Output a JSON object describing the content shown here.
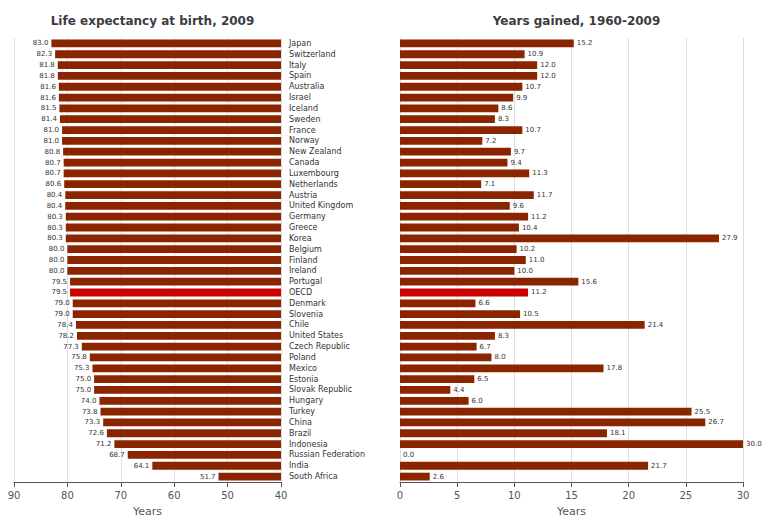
{
  "chart_data": [
    {
      "type": "bar",
      "orientation": "horizontal",
      "title": "Life expectancy at birth, 2009",
      "xlabel": "Years",
      "categories": [
        "Japan",
        "Switzerland",
        "Italy",
        "Spain",
        "Australia",
        "Israel",
        "Iceland",
        "Sweden",
        "France",
        "Norway",
        "New Zealand",
        "Canada",
        "Luxembourg",
        "Netherlands",
        "Austria",
        "United Kingdom",
        "Germany",
        "Greece",
        "Korea",
        "Belgium",
        "Finland",
        "Ireland",
        "Portugal",
        "OECD",
        "Denmark",
        "Slovenia",
        "Chile",
        "United States",
        "Czech Republic",
        "Poland",
        "Mexico",
        "Estonia",
        "Slovak Republic",
        "Hungary",
        "Turkey",
        "China",
        "Brazil",
        "Indonesia",
        "Russian Federation",
        "India",
        "South Africa"
      ],
      "values": [
        83.0,
        82.3,
        81.8,
        81.8,
        81.6,
        81.6,
        81.5,
        81.4,
        81.0,
        81.0,
        80.8,
        80.7,
        80.7,
        80.6,
        80.4,
        80.4,
        80.3,
        80.3,
        80.3,
        80.0,
        80.0,
        80.0,
        79.5,
        79.5,
        79.0,
        79.0,
        78.4,
        78.2,
        77.3,
        75.8,
        75.3,
        75.0,
        75.0,
        74.0,
        73.8,
        73.3,
        72.6,
        71.2,
        68.7,
        64.1,
        51.7
      ],
      "value_labels": [
        "83.0",
        "82.3",
        "81.8",
        "81.8",
        "81.6",
        "81.6",
        "81.5",
        "81.4",
        "81.0",
        "81.0",
        "80.8",
        "80.7",
        "80.7",
        "80.6",
        "80.4",
        "80.4",
        "80.3",
        "80.3",
        "80.3",
        "80.0",
        "80.0",
        "80.0",
        "79.5",
        "79.5",
        "79.0",
        "79.0",
        "78.4",
        "78.2",
        "77.3",
        "75.8",
        "75.3",
        "75.0",
        "75.0",
        "74.0",
        "73.8",
        "73.3",
        "72.6",
        "71.2",
        "68.7",
        "64.1",
        "51.7"
      ],
      "colors": [
        "#8B2500",
        "#8B2500",
        "#8B2500",
        "#8B2500",
        "#8B2500",
        "#8B2500",
        "#8B2500",
        "#8B2500",
        "#8B2500",
        "#8B2500",
        "#8B2500",
        "#8B2500",
        "#8B2500",
        "#8B2500",
        "#8B2500",
        "#8B2500",
        "#8B2500",
        "#8B2500",
        "#8B2500",
        "#8B2500",
        "#8B2500",
        "#8B2500",
        "#8B2500",
        "#CC0000",
        "#8B2500",
        "#8B2500",
        "#8B2500",
        "#8B2500",
        "#8B2500",
        "#8B2500",
        "#8B2500",
        "#8B2500",
        "#8B2500",
        "#8B2500",
        "#8B2500",
        "#8B2500",
        "#8B2500",
        "#8B2500",
        "#8B2500",
        "#8B2500",
        "#8B2500"
      ],
      "xlim": [
        90,
        40
      ],
      "xticks": [
        90,
        80,
        70,
        60,
        50,
        40
      ],
      "grid": true,
      "data_labels": true
    },
    {
      "type": "bar",
      "orientation": "horizontal",
      "title": "Years gained, 1960-2009",
      "xlabel": "Years",
      "categories": [
        "Japan",
        "Switzerland",
        "Italy",
        "Spain",
        "Australia",
        "Israel",
        "Iceland",
        "Sweden",
        "France",
        "Norway",
        "New Zealand",
        "Canada",
        "Luxembourg",
        "Netherlands",
        "Austria",
        "United Kingdom",
        "Germany",
        "Greece",
        "Korea",
        "Belgium",
        "Finland",
        "Ireland",
        "Portugal",
        "OECD",
        "Denmark",
        "Slovenia",
        "Chile",
        "United States",
        "Czech Republic",
        "Poland",
        "Mexico",
        "Estonia",
        "Slovak Republic",
        "Hungary",
        "Turkey",
        "China",
        "Brazil",
        "Indonesia",
        "Russian Federation",
        "India",
        "South Africa"
      ],
      "values": [
        15.2,
        10.9,
        12.0,
        12.0,
        10.7,
        9.9,
        8.6,
        8.3,
        10.7,
        7.2,
        9.7,
        9.4,
        11.3,
        7.1,
        11.7,
        9.6,
        11.2,
        10.4,
        27.9,
        10.2,
        11.0,
        10.0,
        15.6,
        11.2,
        6.6,
        10.5,
        21.4,
        8.3,
        6.7,
        8.0,
        17.8,
        6.5,
        4.4,
        6.0,
        25.5,
        26.7,
        18.1,
        30.0,
        0.0,
        21.7,
        2.6
      ],
      "value_labels": [
        "15.2",
        "10.9",
        "12.0",
        "12.0",
        "10.7",
        "9.9",
        "8.6",
        "8.3",
        "10.7",
        "7.2",
        "9.7",
        "9.4",
        "11.3",
        "7.1",
        "11.7",
        "9.6",
        "11.2",
        "10.4",
        "27.9",
        "10.2",
        "11.0",
        "10.0",
        "15.6",
        "11.2",
        "6.6",
        "10.5",
        "21.4",
        "8.3",
        "6.7",
        "8.0",
        "17.8",
        "6.5",
        "4.4",
        "6.0",
        "25.5",
        "26.7",
        "18.1",
        "30.0",
        "0.0",
        "21.7",
        "2.6"
      ],
      "colors": [
        "#8B2500",
        "#8B2500",
        "#8B2500",
        "#8B2500",
        "#8B2500",
        "#8B2500",
        "#8B2500",
        "#8B2500",
        "#8B2500",
        "#8B2500",
        "#8B2500",
        "#8B2500",
        "#8B2500",
        "#8B2500",
        "#8B2500",
        "#8B2500",
        "#8B2500",
        "#8B2500",
        "#8B2500",
        "#8B2500",
        "#8B2500",
        "#8B2500",
        "#8B2500",
        "#CC0000",
        "#8B2500",
        "#8B2500",
        "#8B2500",
        "#8B2500",
        "#8B2500",
        "#8B2500",
        "#8B2500",
        "#8B2500",
        "#8B2500",
        "#8B2500",
        "#8B2500",
        "#8B2500",
        "#8B2500",
        "#8B2500",
        "#8B2500",
        "#8B2500",
        "#8B2500"
      ],
      "xlim": [
        0,
        30
      ],
      "xticks": [
        0,
        5,
        10,
        15,
        20,
        25,
        30
      ],
      "grid": true,
      "data_labels": true,
      "tick_labels": "x"
    }
  ]
}
